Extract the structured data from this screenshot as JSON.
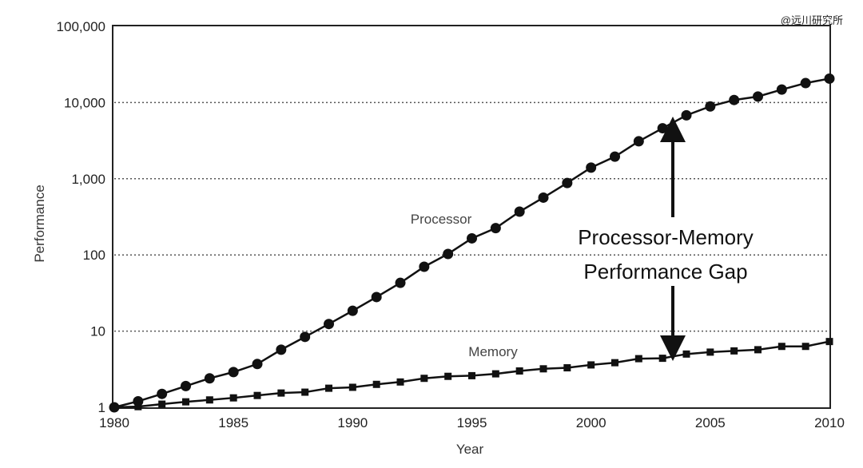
{
  "watermark": "@远川研究所",
  "chart_data": {
    "type": "line",
    "title": "",
    "xlabel": "Year",
    "ylabel": "Performance",
    "yscale": "log",
    "xlim": [
      1980,
      2010
    ],
    "ylim": [
      1,
      100000
    ],
    "x_ticks": [
      "1980",
      "1985",
      "1990",
      "1995",
      "2000",
      "2005",
      "2010"
    ],
    "y_ticks": [
      "1",
      "10",
      "100",
      "1,000",
      "10,000",
      "100,000"
    ],
    "y_tick_values": [
      1,
      10,
      100,
      1000,
      10000,
      100000
    ],
    "grid": "horizontal dotted",
    "x": [
      1980,
      1981,
      1982,
      1983,
      1984,
      1985,
      1986,
      1987,
      1988,
      1989,
      1990,
      1991,
      1992,
      1993,
      1994,
      1995,
      1996,
      1997,
      1998,
      1999,
      2000,
      2001,
      2002,
      2003,
      2004,
      2005,
      2006,
      2007,
      2008,
      2009,
      2010
    ],
    "series": [
      {
        "name": "Processor",
        "marker": "circle",
        "values": [
          1,
          1.2,
          1.5,
          1.9,
          2.4,
          2.9,
          3.7,
          5.7,
          8.4,
          12.4,
          18.5,
          28,
          43,
          70,
          103,
          165,
          225,
          370,
          565,
          880,
          1400,
          1950,
          3100,
          4600,
          6800,
          8900,
          10800,
          12000,
          14800,
          18000,
          20600
        ]
      },
      {
        "name": "Memory",
        "marker": "square",
        "values": [
          1,
          1.02,
          1.1,
          1.18,
          1.25,
          1.33,
          1.43,
          1.54,
          1.58,
          1.78,
          1.83,
          2.0,
          2.15,
          2.4,
          2.55,
          2.6,
          2.75,
          3.0,
          3.2,
          3.3,
          3.6,
          3.85,
          4.35,
          4.4,
          5.0,
          5.3,
          5.5,
          5.7,
          6.3,
          6.3,
          7.3
        ]
      }
    ],
    "annotations": {
      "line1": "Processor-Memory",
      "line2": "Performance Gap"
    }
  }
}
